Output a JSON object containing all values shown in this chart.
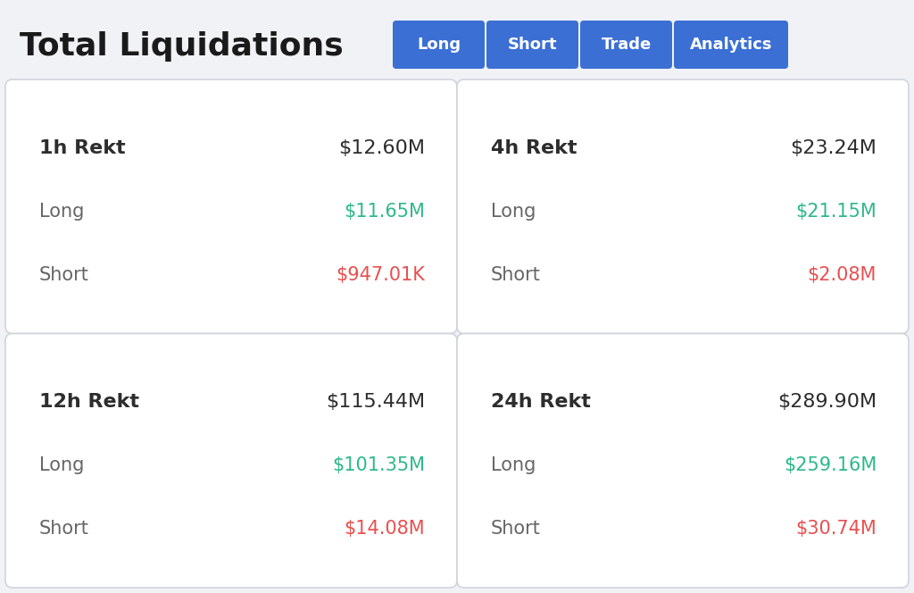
{
  "title": "Total Liquidations",
  "background_color": "#f0f2f5",
  "card_background": "#ffffff",
  "title_color": "#1a1a1a",
  "title_fontsize": 26,
  "buttons": [
    "Long",
    "Short",
    "Trade",
    "Analytics"
  ],
  "button_color": "#3b6fd4",
  "button_text_color": "#ffffff",
  "button_fontsize": 13,
  "cards": [
    {
      "period": "1h Rekt",
      "total": "$12.60M",
      "long_label": "Long",
      "long_value": "$11.65M",
      "short_label": "Short",
      "short_value": "$947.01K"
    },
    {
      "period": "4h Rekt",
      "total": "$23.24M",
      "long_label": "Long",
      "long_value": "$21.15M",
      "short_label": "Short",
      "short_value": "$2.08M"
    },
    {
      "period": "12h Rekt",
      "total": "$115.44M",
      "long_label": "Long",
      "long_value": "$101.35M",
      "short_label": "Short",
      "short_value": "$14.08M"
    },
    {
      "period": "24h Rekt",
      "total": "$289.90M",
      "long_label": "Long",
      "long_value": "$259.16M",
      "short_label": "Short",
      "short_value": "$30.74M"
    }
  ],
  "period_color": "#2d2d2d",
  "total_color": "#2d2d2d",
  "label_color": "#666666",
  "long_value_color": "#2db88a",
  "short_value_color": "#e85050",
  "period_fontsize": 16,
  "total_fontsize": 16,
  "label_fontsize": 15,
  "value_fontsize": 15
}
